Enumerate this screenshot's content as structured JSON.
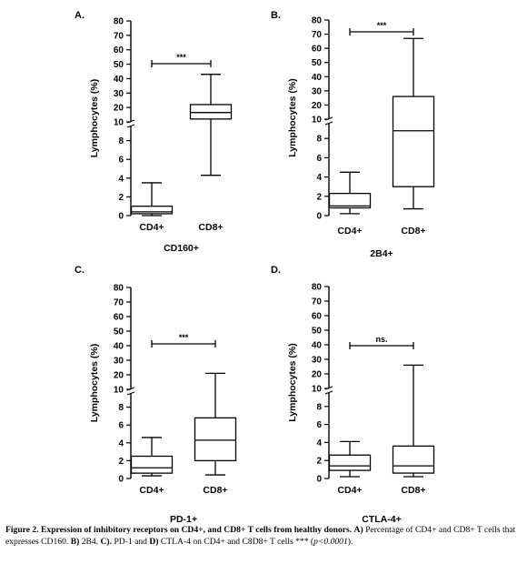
{
  "chart_data": [
    {
      "type": "boxplot",
      "panel": "A.",
      "xlabel": "CD160+",
      "ylabel": "Lymphocytes (%)",
      "axis_break": "10",
      "lower_segment": {
        "ylim": [
          0,
          10
        ],
        "ticks": [
          "0",
          "2",
          "4",
          "6",
          "8",
          "10"
        ]
      },
      "upper_segment": {
        "ylim": [
          10,
          80
        ],
        "ticks": [
          "10",
          "20",
          "30",
          "40",
          "50",
          "60",
          "70",
          "80"
        ]
      },
      "categories": [
        "CD4+",
        "CD8+"
      ],
      "boxes": [
        {
          "category": "CD4+",
          "min": 0.0,
          "q1": 0.2,
          "median": 0.4,
          "q3": 1.0,
          "max": 3.5
        },
        {
          "category": "CD8+",
          "min": 4.3,
          "q1": 12.0,
          "median": 16.5,
          "q3": 22.0,
          "max": 43.0
        }
      ],
      "significance": "***"
    },
    {
      "type": "boxplot",
      "panel": "B.",
      "xlabel": "2B4+",
      "ylabel": "Lymphocytes (%)",
      "axis_break": "10",
      "lower_segment": {
        "ylim": [
          0,
          10
        ],
        "ticks": [
          "0",
          "2",
          "4",
          "6",
          "8",
          "10"
        ]
      },
      "upper_segment": {
        "ylim": [
          10,
          80
        ],
        "ticks": [
          "10",
          "20",
          "30",
          "40",
          "50",
          "60",
          "70",
          "80"
        ]
      },
      "categories": [
        "CD4+",
        "CD8+"
      ],
      "boxes": [
        {
          "category": "CD4+",
          "min": 0.2,
          "q1": 0.8,
          "median": 1.0,
          "q3": 2.3,
          "max": 4.5
        },
        {
          "category": "CD8+",
          "min": 0.7,
          "q1": 3.0,
          "median": 8.8,
          "q3": 26.0,
          "max": 67.0
        }
      ],
      "significance": "***"
    },
    {
      "type": "boxplot",
      "panel": "C.",
      "xlabel": "PD-1+",
      "ylabel": "Lymphocytes (%)",
      "axis_break": "10",
      "lower_segment": {
        "ylim": [
          0,
          10
        ],
        "ticks": [
          "0",
          "2",
          "4",
          "6",
          "8",
          "10"
        ]
      },
      "upper_segment": {
        "ylim": [
          10,
          80
        ],
        "ticks": [
          "10",
          "20",
          "30",
          "40",
          "50",
          "60",
          "70",
          "80"
        ]
      },
      "categories": [
        "CD4+",
        "CD8+"
      ],
      "boxes": [
        {
          "category": "CD4+",
          "min": 0.3,
          "q1": 0.6,
          "median": 1.2,
          "q3": 2.5,
          "max": 4.6
        },
        {
          "category": "CD8+",
          "min": 0.4,
          "q1": 2.0,
          "median": 4.3,
          "q3": 6.8,
          "max": 21.0
        }
      ],
      "significance": "***"
    },
    {
      "type": "boxplot",
      "panel": "D.",
      "xlabel": "CTLA-4+",
      "ylabel": "Lymphocytes (%)",
      "axis_break": "10",
      "lower_segment": {
        "ylim": [
          0,
          10
        ],
        "ticks": [
          "0",
          "2",
          "4",
          "6",
          "8",
          "10"
        ]
      },
      "upper_segment": {
        "ylim": [
          10,
          80
        ],
        "ticks": [
          "10",
          "20",
          "30",
          "40",
          "50",
          "60",
          "70",
          "80"
        ]
      },
      "categories": [
        "CD4+",
        "CD8+"
      ],
      "boxes": [
        {
          "category": "CD4+",
          "min": 0.2,
          "q1": 0.9,
          "median": 1.4,
          "q3": 2.6,
          "max": 4.1
        },
        {
          "category": "CD8+",
          "min": 0.2,
          "q1": 0.6,
          "median": 1.4,
          "q3": 3.6,
          "max": 26.0
        }
      ],
      "significance": "ns."
    }
  ],
  "caption": {
    "figure_label": "Figure 2.",
    "bold_title": "Expression of inhibitory receptors on CD4+, and CD8+ T cells from healthy donors.",
    "items": [
      {
        "label": "A)",
        "text": "Percentage of CD4+ and CD8+ T cells that expresses CD160."
      },
      {
        "label": "B)",
        "text": "2B4."
      },
      {
        "label": "C).",
        "text": "PD-1 and"
      },
      {
        "label": "D)",
        "text": "CTLA-4 on CD4+ and C8D8+ T cells *** ("
      }
    ],
    "pvalue": "p<0.0001",
    "closing": ")."
  }
}
